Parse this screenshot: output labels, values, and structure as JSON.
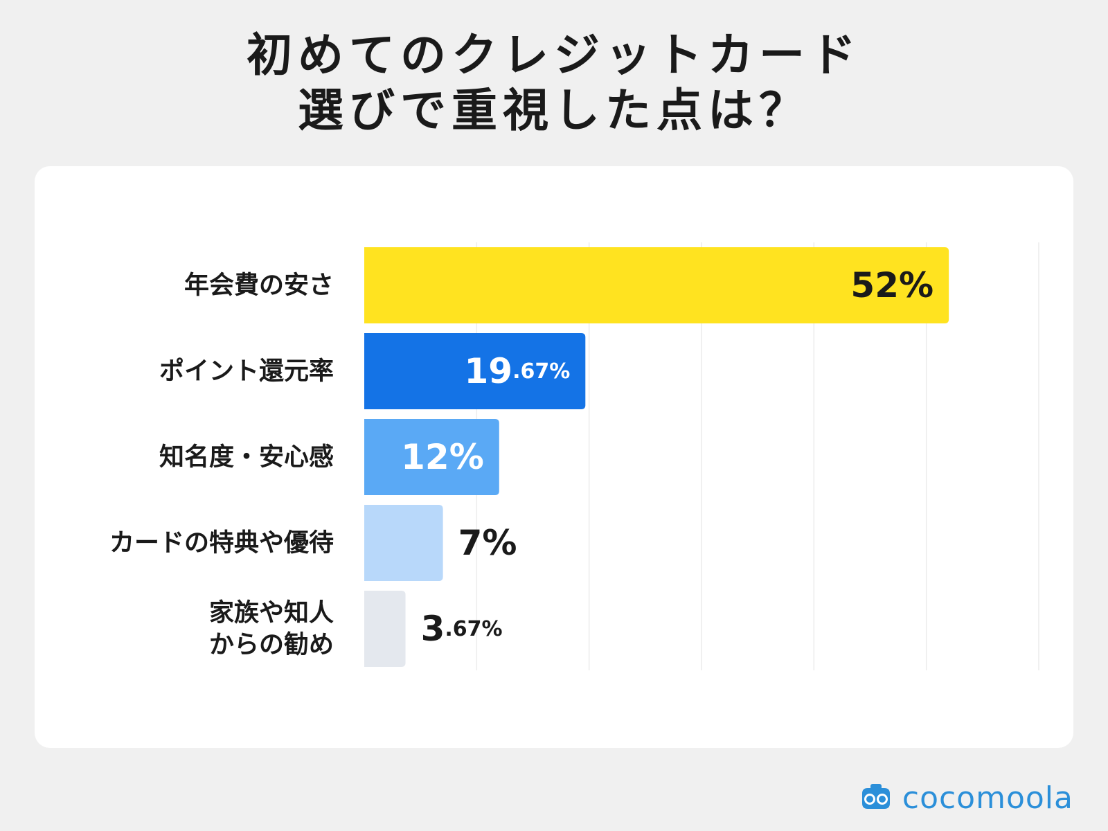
{
  "title": {
    "line1": "初めてのクレジットカード",
    "line2": "選びで重視した点は？"
  },
  "brand": {
    "name": "cocomoola",
    "color": "#2b8fd9"
  },
  "chart_data": {
    "type": "bar",
    "orientation": "horizontal",
    "title": "初めてのクレジットカード選びで重視した点は？",
    "xlabel": "",
    "ylabel": "",
    "unit": "%",
    "xlim": [
      0,
      60
    ],
    "grid": true,
    "legend": "none",
    "categories": [
      "年会費の安さ",
      "ポイント還元率",
      "知名度・安心感",
      "カードの特典や優待",
      "家族や知人からの勧め"
    ],
    "category_lines": [
      [
        "年会費の安さ"
      ],
      [
        "ポイント還元率"
      ],
      [
        "知名度・安心感"
      ],
      [
        "カードの特典や優待"
      ],
      [
        "家族や知人",
        "からの勧め"
      ]
    ],
    "values": [
      52,
      19.67,
      12,
      7,
      3.67
    ],
    "value_labels": [
      {
        "main": "52",
        "decimal": "",
        "unit": "%"
      },
      {
        "main": "19",
        "decimal": ".67",
        "unit": "%"
      },
      {
        "main": "12",
        "decimal": "",
        "unit": "%"
      },
      {
        "main": "7",
        "decimal": "",
        "unit": "%"
      },
      {
        "main": "3",
        "decimal": ".67",
        "unit": "%"
      }
    ],
    "colors": [
      "#ffe320",
      "#1473e6",
      "#5aa9f5",
      "#b8d8fa",
      "#e4e8ee"
    ],
    "label_colors": [
      "#1a1a1a",
      "#ffffff",
      "#ffffff",
      "#1a1a1a",
      "#1a1a1a"
    ]
  }
}
